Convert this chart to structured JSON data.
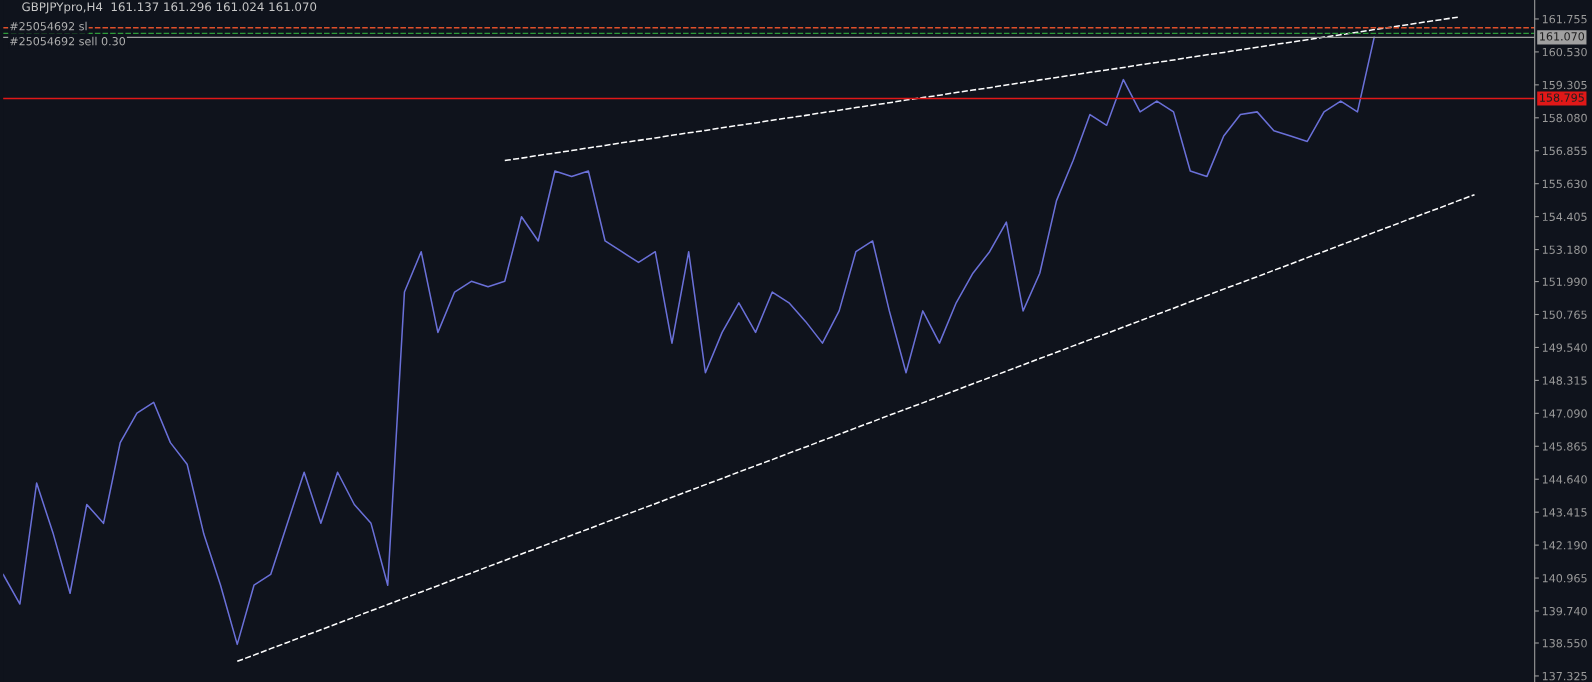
{
  "chart_data": {
    "type": "line",
    "title": "GBPJPYpro,H4  161.137 161.296 161.024 161.070",
    "annotations": [
      "#25054692 sl",
      "#25054692 sell 0.30"
    ],
    "categories": [
      null,
      null,
      null,
      null,
      null,
      null,
      null,
      null,
      null,
      null,
      null,
      null,
      null,
      null,
      null,
      null,
      null,
      null,
      null,
      null,
      null,
      null,
      null,
      null,
      null,
      null,
      null,
      null,
      null,
      null,
      null,
      null,
      null,
      null,
      null,
      null,
      null,
      null,
      null,
      null,
      null,
      null,
      null,
      null,
      null,
      null,
      null,
      null,
      null,
      null,
      null,
      null,
      null,
      null,
      null,
      null,
      null,
      null,
      null,
      null,
      null,
      null,
      null,
      null,
      null,
      null,
      null,
      null,
      null,
      null,
      null,
      null,
      null,
      null,
      null,
      null,
      null,
      null,
      null,
      null,
      null,
      null,
      null,
      null,
      null,
      null,
      null,
      null,
      null,
      null,
      null,
      null
    ],
    "series": [
      {
        "color": "#6a70d8",
        "line_style": "solid",
        "values": [
          141.1,
          140.0,
          144.5,
          142.6,
          140.4,
          143.7,
          143.0,
          146.0,
          147.1,
          147.5,
          146.0,
          145.2,
          142.6,
          140.7,
          138.5,
          140.7,
          141.1,
          143.0,
          144.9,
          143.0,
          144.9,
          143.7,
          143.0,
          140.7,
          151.6,
          153.1,
          150.1,
          151.6,
          152.0,
          151.8,
          152.0,
          154.4,
          153.5,
          156.1,
          155.9,
          156.1,
          153.5,
          153.1,
          152.7,
          153.1,
          149.7,
          153.1,
          148.6,
          150.1,
          151.2,
          150.1,
          151.6,
          151.2,
          150.5,
          149.7,
          150.9,
          153.1,
          153.5,
          150.9,
          148.6,
          150.9,
          149.7,
          151.2,
          152.3,
          153.1,
          154.2,
          150.9,
          152.3,
          155.0,
          156.5,
          158.2,
          157.8,
          159.5,
          158.3,
          158.7,
          158.3,
          156.1,
          155.9,
          157.4,
          158.2,
          158.3,
          157.6,
          157.4,
          157.2,
          158.3,
          158.7,
          158.3,
          161.07,
          null,
          null,
          null,
          null,
          null,
          null,
          null,
          null,
          null
        ]
      },
      {
        "type": "line",
        "color": "#ffffff",
        "line_style": "dashed",
        "values": [
          null,
          null,
          null,
          null,
          null,
          null,
          null,
          null,
          null,
          null,
          null,
          null,
          null,
          null,
          null,
          null,
          null,
          null,
          null,
          null,
          null,
          null,
          null,
          null,
          null,
          null,
          null,
          null,
          null,
          null,
          156.49,
          156.58,
          156.68,
          156.77,
          156.86,
          156.96,
          157.05,
          157.15,
          157.24,
          157.33,
          157.43,
          157.52,
          157.61,
          157.71,
          157.8,
          157.89,
          157.99,
          158.08,
          158.17,
          158.27,
          158.36,
          158.46,
          158.55,
          158.64,
          158.74,
          158.83,
          158.92,
          159.02,
          159.11,
          159.2,
          159.3,
          159.39,
          159.49,
          159.58,
          159.67,
          159.77,
          159.86,
          159.95,
          160.05,
          160.14,
          160.23,
          160.33,
          160.42,
          160.51,
          160.61,
          160.7,
          160.8,
          160.89,
          160.98,
          161.08,
          161.17,
          161.26,
          161.36,
          161.45,
          161.54,
          161.64,
          161.73,
          161.82,
          null,
          null,
          null,
          null
        ]
      },
      {
        "type": "line",
        "color": "#ffffff",
        "line_style": "dashed",
        "values": [
          null,
          null,
          null,
          null,
          null,
          null,
          null,
          null,
          null,
          null,
          null,
          null,
          null,
          null,
          137.87,
          138.1,
          138.34,
          138.57,
          138.81,
          139.04,
          139.28,
          139.51,
          139.75,
          139.98,
          140.22,
          140.45,
          140.68,
          140.92,
          141.15,
          141.39,
          141.62,
          141.86,
          142.09,
          142.33,
          142.56,
          142.79,
          143.03,
          143.26,
          143.5,
          143.73,
          143.97,
          144.2,
          144.44,
          144.67,
          144.91,
          145.14,
          145.37,
          145.61,
          145.84,
          146.08,
          146.31,
          146.55,
          146.78,
          147.02,
          147.25,
          147.48,
          147.72,
          147.95,
          148.19,
          148.42,
          148.66,
          148.89,
          149.13,
          149.36,
          149.6,
          149.83,
          150.06,
          150.3,
          150.53,
          150.77,
          151.0,
          151.24,
          151.47,
          151.71,
          151.94,
          152.17,
          152.41,
          152.64,
          152.88,
          153.11,
          153.35,
          153.58,
          153.82,
          154.05,
          154.29,
          154.52,
          154.75,
          154.99,
          155.22,
          null,
          null,
          null
        ]
      }
    ],
    "ref_lines": [
      {
        "axis": "y",
        "value": 161.43,
        "color": "#e0502a",
        "line_style": "dashed"
      },
      {
        "axis": "y",
        "value": 161.22,
        "color": "#2e9a3a",
        "line_style": "dashed"
      },
      {
        "axis": "y",
        "value": 161.07,
        "color": "#a0a0a0",
        "line_style": "solid",
        "label": "161.070"
      },
      {
        "axis": "y",
        "value": 158.795,
        "color": "#e01818",
        "line_style": "solid",
        "label": "158.795"
      }
    ],
    "ylim": [
      137.1,
      162.46
    ],
    "yticks": [
      {
        "value": 161.755,
        "label": "161.755"
      },
      {
        "value": 160.53,
        "label": "160.530"
      },
      {
        "value": 159.305,
        "label": "159.305"
      },
      {
        "value": 158.08,
        "label": "158.080"
      },
      {
        "value": 156.855,
        "label": "156.855"
      },
      {
        "value": 155.63,
        "label": "155.630"
      },
      {
        "value": 154.405,
        "label": "154.405"
      },
      {
        "value": 153.18,
        "label": "153.180"
      },
      {
        "value": 151.99,
        "label": "151.990"
      },
      {
        "value": 150.765,
        "label": "150.765"
      },
      {
        "value": 149.54,
        "label": "149.540"
      },
      {
        "value": 148.315,
        "label": "148.315"
      },
      {
        "value": 147.09,
        "label": "147.090"
      },
      {
        "value": 145.865,
        "label": "145.865"
      },
      {
        "value": 144.64,
        "label": "144.640"
      },
      {
        "value": 143.415,
        "label": "143.415"
      },
      {
        "value": 142.19,
        "label": "142.190"
      },
      {
        "value": 140.965,
        "label": "140.965"
      },
      {
        "value": 139.74,
        "label": "139.740"
      },
      {
        "value": 138.55,
        "label": "138.550"
      },
      {
        "value": 137.325,
        "label": "137.325"
      }
    ],
    "tick_labels": "y",
    "grid": false,
    "legend": false,
    "marker": "none"
  }
}
